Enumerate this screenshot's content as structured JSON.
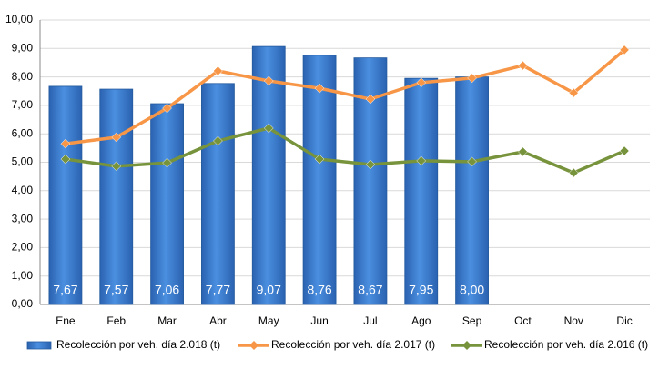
{
  "chart_data": {
    "type": "bar",
    "categories": [
      "Ene",
      "Feb",
      "Mar",
      "Abr",
      "May",
      "Jun",
      "Jul",
      "Ago",
      "Sep",
      "Oct",
      "Nov",
      "Dic"
    ],
    "series": [
      {
        "name": "Recolección por veh. día 2.018 (t)",
        "type": "bar",
        "color": "#3a7fd5",
        "values": [
          7.67,
          7.57,
          7.06,
          7.77,
          9.07,
          8.76,
          8.67,
          7.95,
          8.0,
          null,
          null,
          null
        ],
        "value_labels": [
          "7,67",
          "7,57",
          "7,06",
          "7,77",
          "9,07",
          "8,76",
          "8,67",
          "7,95",
          "8,00",
          null,
          null,
          null
        ]
      },
      {
        "name": "Recolección por veh. día 2.017 (t)",
        "type": "line",
        "color": "#f79646",
        "values": [
          5.65,
          5.88,
          6.9,
          8.21,
          7.86,
          7.6,
          7.22,
          7.8,
          7.96,
          8.4,
          7.44,
          8.95
        ]
      },
      {
        "name": "Recolección por veh. día 2.016 (t)",
        "type": "line",
        "color": "#77933c",
        "values": [
          5.11,
          4.86,
          4.98,
          5.75,
          6.2,
          5.11,
          4.92,
          5.05,
          5.02,
          5.37,
          4.63,
          5.4
        ]
      }
    ],
    "ylim": [
      0,
      10
    ],
    "yticks": [
      {
        "value": 0,
        "label": "0,00"
      },
      {
        "value": 1,
        "label": "1,00"
      },
      {
        "value": 2,
        "label": "2,00"
      },
      {
        "value": 3,
        "label": "3,00"
      },
      {
        "value": 4,
        "label": "4,00"
      },
      {
        "value": 5,
        "label": "5,00"
      },
      {
        "value": 6,
        "label": "6,00"
      },
      {
        "value": 7,
        "label": "7,00"
      },
      {
        "value": 8,
        "label": "8,00"
      },
      {
        "value": 9,
        "label": "9,00"
      },
      {
        "value": 10,
        "label": "10,00"
      }
    ],
    "grid": true
  }
}
